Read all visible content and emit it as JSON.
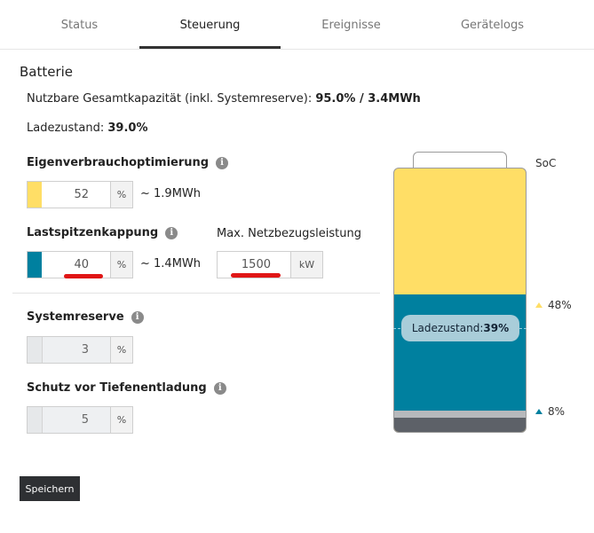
{
  "tabs": [
    {
      "label": "Status"
    },
    {
      "label": "Steuerung"
    },
    {
      "label": "Ereignisse"
    },
    {
      "label": "Gerätelogs"
    }
  ],
  "active_tab": "Steuerung",
  "section_title": "Batterie",
  "capacity": {
    "label": "Nutzbare Gesamtkapazität (inkl. Systemreserve):",
    "value": "95.0% / 3.4MWh"
  },
  "charge_state": {
    "label": "Ladezustand:",
    "value": "39.0%"
  },
  "self_consumption": {
    "label": "Eigenverbrauchoptimierung",
    "value": "52",
    "unit": "%",
    "approx": "~ 1.9MWh",
    "color": "#ffde66"
  },
  "peak_shaving": {
    "label": "Lastspitzenkappung",
    "value": "40",
    "unit": "%",
    "approx": "~ 1.4MWh",
    "color": "#00809f"
  },
  "max_grid": {
    "label": "Max. Netzbezugsleistung",
    "value": "1500",
    "unit": "kW"
  },
  "system_reserve": {
    "label": "Systemreserve",
    "value": "3",
    "unit": "%"
  },
  "deep_discharge": {
    "label": "Schutz vor Tiefenentladung",
    "value": "5",
    "unit": "%"
  },
  "save_label": "Speichern",
  "battery": {
    "soc_label": "SoC",
    "pill_label": "Ladezustand:",
    "pill_value": "39%",
    "level_yellow_top": 1.0,
    "level_blue_top": 0.48,
    "level_reserve_top": 0.08,
    "level_deep_top": 0.05,
    "marker_high": "48%",
    "marker_low": "8%",
    "color_yellow": "#ffde66",
    "color_blue": "#00809f",
    "color_reserve": "#b7b9bc",
    "color_deep": "#5d6168"
  }
}
